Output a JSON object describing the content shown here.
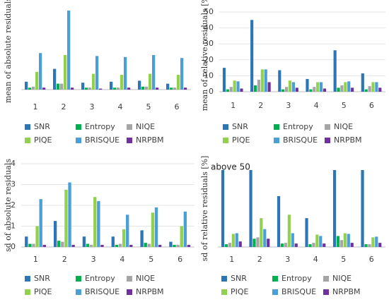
{
  "chart_data": [
    {
      "type": "bar",
      "ylabel": "mean of absolute residuals",
      "categories": [
        "1",
        "2",
        "3",
        "4",
        "5",
        "6"
      ],
      "ylim": [
        0,
        4
      ],
      "grid": true,
      "series": [
        {
          "name": "SNR",
          "color": "#2e75b6",
          "values": [
            0.4,
            1.05,
            0.35,
            0.4,
            0.45,
            0.3
          ]
        },
        {
          "name": "Entropy",
          "color": "#00b050",
          "values": [
            0.1,
            0.3,
            0.1,
            0.1,
            0.15,
            0.1
          ]
        },
        {
          "name": "NIQE",
          "color": "#a5a5a5",
          "values": [
            0.15,
            0.3,
            0.1,
            0.1,
            0.15,
            0.1
          ]
        },
        {
          "name": "PIQE",
          "color": "#92d050",
          "values": [
            0.9,
            1.75,
            0.8,
            0.75,
            0.8,
            0.75
          ]
        },
        {
          "name": "BRISQUE",
          "color": "#4a9fd8",
          "values": [
            1.85,
            4.0,
            1.7,
            1.65,
            1.75,
            1.6
          ]
        },
        {
          "name": "NRPBM",
          "color": "#7030a0",
          "values": [
            0.1,
            0.1,
            0.05,
            0.1,
            0.1,
            0.1
          ]
        }
      ]
    },
    {
      "type": "bar",
      "ylabel": "mean of relative residuals [%]",
      "categories": [
        "1",
        "2",
        "3",
        "4",
        "5",
        "6"
      ],
      "ylim": [
        0,
        50
      ],
      "yticks": [
        0,
        10,
        20,
        30,
        40,
        50
      ],
      "grid": true,
      "series": [
        {
          "name": "SNR",
          "color": "#2e75b6",
          "values": [
            15,
            45,
            13.5,
            8,
            26,
            11.5
          ]
        },
        {
          "name": "Entropy",
          "color": "#00b050",
          "values": [
            1.5,
            4,
            1.5,
            1.5,
            2.5,
            1.5
          ]
        },
        {
          "name": "NIQE",
          "color": "#a5a5a5",
          "values": [
            3,
            7.5,
            3,
            3,
            4,
            3.5
          ]
        },
        {
          "name": "PIQE",
          "color": "#92d050",
          "values": [
            7,
            14,
            7,
            6,
            6,
            6
          ]
        },
        {
          "name": "BRISQUE",
          "color": "#4a9fd8",
          "values": [
            6.5,
            14,
            6,
            6,
            6.5,
            6
          ]
        },
        {
          "name": "NRPBM",
          "color": "#7030a0",
          "values": [
            2,
            6,
            2.5,
            2,
            2.5,
            2.5
          ]
        }
      ]
    },
    {
      "type": "bar",
      "ylabel": "sd of absolute residuals",
      "categories": [
        "1",
        "2",
        "3",
        "4",
        "5",
        "6"
      ],
      "ylim": [
        0,
        4
      ],
      "yticks": [
        0,
        1,
        2,
        3,
        4
      ],
      "grid": true,
      "series": [
        {
          "name": "SNR",
          "color": "#2e75b6",
          "values": [
            0.5,
            1.25,
            0.5,
            0.5,
            0.8,
            0.25
          ]
        },
        {
          "name": "Entropy",
          "color": "#00b050",
          "values": [
            0.15,
            0.3,
            0.15,
            0.1,
            0.2,
            0.1
          ]
        },
        {
          "name": "NIQE",
          "color": "#a5a5a5",
          "values": [
            0.15,
            0.25,
            0.1,
            0.15,
            0.15,
            0.1
          ]
        },
        {
          "name": "PIQE",
          "color": "#92d050",
          "values": [
            1.0,
            2.75,
            2.4,
            0.85,
            1.65,
            1.0
          ]
        },
        {
          "name": "BRISQUE",
          "color": "#4a9fd8",
          "values": [
            2.3,
            3.1,
            2.2,
            1.55,
            1.9,
            1.7
          ]
        },
        {
          "name": "NRPBM",
          "color": "#7030a0",
          "values": [
            0.1,
            0.1,
            0.1,
            0.1,
            0.1,
            0.1
          ]
        }
      ]
    },
    {
      "type": "bar",
      "ylabel": "sd of relative residuals [%]",
      "annotation": "above 50",
      "categories": [
        "1",
        "2",
        "3",
        "4",
        "5",
        "6"
      ],
      "ylim": [
        0,
        56
      ],
      "grid": false,
      "series": [
        {
          "name": "SNR",
          "color": "#2e75b6",
          "values": [
            56,
            56,
            37,
            21,
            56,
            56
          ]
        },
        {
          "name": "Entropy",
          "color": "#00b050",
          "values": [
            2,
            6,
            2.5,
            2,
            8,
            2
          ]
        },
        {
          "name": "NIQE",
          "color": "#a5a5a5",
          "values": [
            3,
            7,
            3,
            3,
            5,
            2
          ]
        },
        {
          "name": "PIQE",
          "color": "#92d050",
          "values": [
            9.5,
            21,
            23.5,
            9,
            10,
            7
          ]
        },
        {
          "name": "BRISQUE",
          "color": "#4a9fd8",
          "values": [
            10,
            13,
            10,
            8,
            9.5,
            7.5
          ]
        },
        {
          "name": "NRPBM",
          "color": "#7030a0",
          "values": [
            4,
            6,
            2.5,
            2.5,
            3,
            3
          ]
        }
      ]
    }
  ]
}
